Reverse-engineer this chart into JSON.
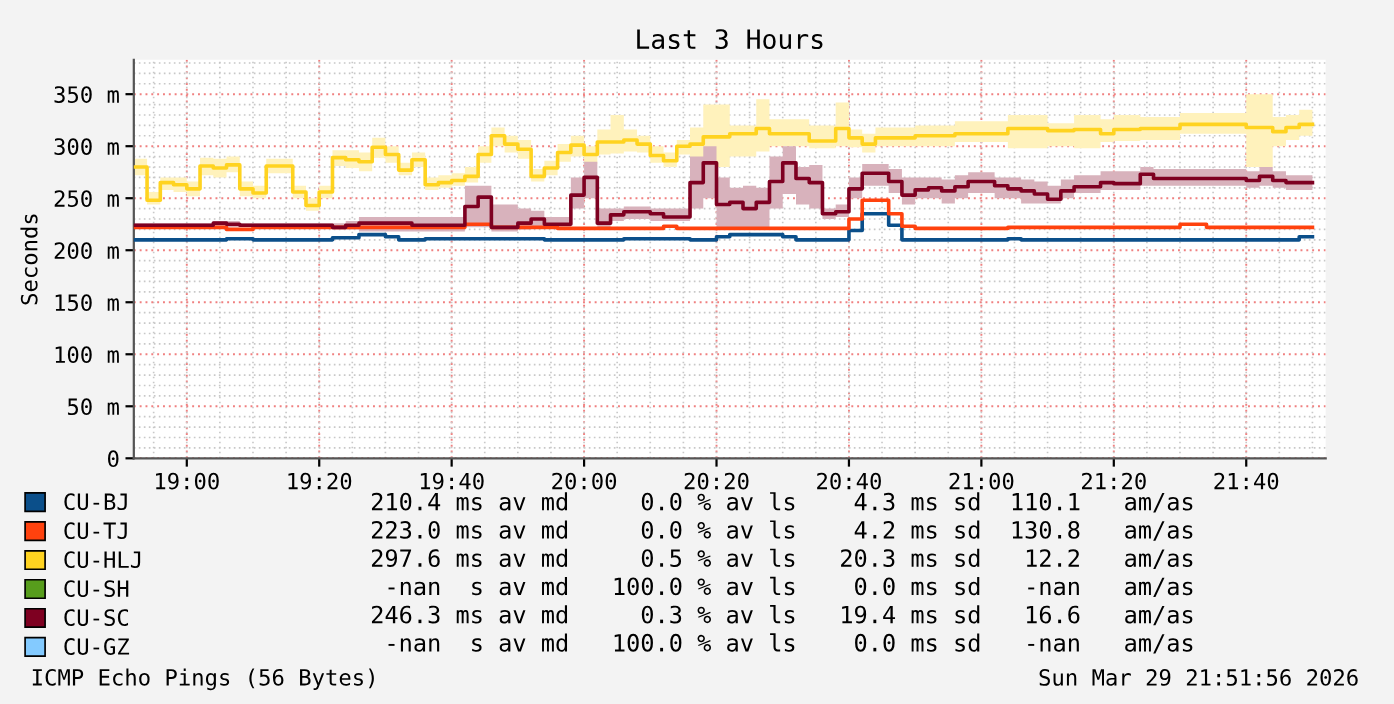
{
  "chart_data": {
    "type": "step",
    "title": "Last 3 Hours",
    "ylabel": "Seconds",
    "xlim": [
      "2026-03-29T18:52",
      "2026-03-29T21:52"
    ],
    "xticks": [
      {
        "value": "2026-03-29T19:00",
        "label": "19:00"
      },
      {
        "value": "2026-03-29T19:20",
        "label": "19:20"
      },
      {
        "value": "2026-03-29T19:40",
        "label": "19:40"
      },
      {
        "value": "2026-03-29T20:00",
        "label": "20:00"
      },
      {
        "value": "2026-03-29T20:20",
        "label": "20:20"
      },
      {
        "value": "2026-03-29T20:40",
        "label": "20:40"
      },
      {
        "value": "2026-03-29T21:00",
        "label": "21:00"
      },
      {
        "value": "2026-03-29T21:20",
        "label": "21:20"
      },
      {
        "value": "2026-03-29T21:40",
        "label": "21:40"
      }
    ],
    "ylim": [
      0,
      383
    ],
    "yticks": [
      0,
      {
        "value": 50,
        "label": "50 m"
      },
      {
        "value": 100,
        "label": "100 m"
      },
      {
        "value": 150,
        "label": "150 m"
      },
      {
        "value": 200,
        "label": "200 m"
      },
      {
        "value": 250,
        "label": "250 m"
      },
      {
        "value": 300,
        "label": "300 m"
      },
      {
        "value": 350,
        "label": "350 m"
      }
    ],
    "grid": true,
    "legend": "bottom",
    "line_style": "solid",
    "marker": "none",
    "series": [
      {
        "name": "CU-BJ",
        "color": "#0b4f8a",
        "x": [
          "2026-03-29T18:52",
          "2026-03-29T19:06",
          "2026-03-29T19:10",
          "2026-03-29T19:22",
          "2026-03-29T19:26",
          "2026-03-29T19:30",
          "2026-03-29T19:32",
          "2026-03-29T19:36",
          "2026-03-29T19:54",
          "2026-03-29T20:06",
          "2026-03-29T20:16",
          "2026-03-29T20:20",
          "2026-03-29T20:22",
          "2026-03-29T20:30",
          "2026-03-29T20:32",
          "2026-03-29T20:40",
          "2026-03-29T20:42",
          "2026-03-29T20:46",
          "2026-03-29T20:48",
          "2026-03-29T21:04",
          "2026-03-29T21:06",
          "2026-03-29T21:48",
          "2026-03-29T21:50"
        ],
        "values": [
          210,
          211,
          210,
          212,
          215,
          213,
          210,
          211,
          210,
          211,
          210,
          213,
          215,
          213,
          210,
          219,
          235,
          224,
          210,
          211,
          210,
          213,
          213
        ]
      },
      {
        "name": "CU-TJ",
        "color": "#ff420e",
        "x": [
          "2026-03-29T18:52",
          "2026-03-29T19:06",
          "2026-03-29T19:10",
          "2026-03-29T19:42",
          "2026-03-29T19:46",
          "2026-03-29T19:56",
          "2026-03-29T20:12",
          "2026-03-29T20:14",
          "2026-03-29T20:40",
          "2026-03-29T20:42",
          "2026-03-29T20:46",
          "2026-03-29T20:48",
          "2026-03-29T20:50",
          "2026-03-29T21:04",
          "2026-03-29T21:30",
          "2026-03-29T21:34",
          "2026-03-29T21:50"
        ],
        "values": [
          222,
          220,
          222,
          225,
          222,
          221,
          223,
          221,
          230,
          248,
          235,
          223,
          221,
          222,
          225,
          222,
          222
        ]
      },
      {
        "name": "CU-HLJ",
        "color": "#ffd320",
        "x": [
          "2026-03-29T18:52",
          "2026-03-29T18:54",
          "2026-03-29T18:56",
          "2026-03-29T18:58",
          "2026-03-29T19:00",
          "2026-03-29T19:02",
          "2026-03-29T19:04",
          "2026-03-29T19:06",
          "2026-03-29T19:08",
          "2026-03-29T19:10",
          "2026-03-29T19:12",
          "2026-03-29T19:16",
          "2026-03-29T19:18",
          "2026-03-29T19:20",
          "2026-03-29T19:22",
          "2026-03-29T19:24",
          "2026-03-29T19:26",
          "2026-03-29T19:28",
          "2026-03-29T19:30",
          "2026-03-29T19:32",
          "2026-03-29T19:34",
          "2026-03-29T19:36",
          "2026-03-29T19:38",
          "2026-03-29T19:40",
          "2026-03-29T19:42",
          "2026-03-29T19:44",
          "2026-03-29T19:46",
          "2026-03-29T19:48",
          "2026-03-29T19:50",
          "2026-03-29T19:52",
          "2026-03-29T19:54",
          "2026-03-29T19:56",
          "2026-03-29T19:58",
          "2026-03-29T20:00",
          "2026-03-29T20:02",
          "2026-03-29T20:04",
          "2026-03-29T20:06",
          "2026-03-29T20:08",
          "2026-03-29T20:10",
          "2026-03-29T20:12",
          "2026-03-29T20:14",
          "2026-03-29T20:16",
          "2026-03-29T20:18",
          "2026-03-29T20:22",
          "2026-03-29T20:26",
          "2026-03-29T20:28",
          "2026-03-29T20:34",
          "2026-03-29T20:38",
          "2026-03-29T20:40",
          "2026-03-29T20:42",
          "2026-03-29T20:44",
          "2026-03-29T20:50",
          "2026-03-29T20:56",
          "2026-03-29T21:04",
          "2026-03-29T21:10",
          "2026-03-29T21:14",
          "2026-03-29T21:18",
          "2026-03-29T21:20",
          "2026-03-29T21:24",
          "2026-03-29T21:30",
          "2026-03-29T21:40",
          "2026-03-29T21:44",
          "2026-03-29T21:46",
          "2026-03-29T21:48",
          "2026-03-29T21:50"
        ],
        "values": [
          280,
          248,
          265,
          263,
          259,
          281,
          279,
          282,
          259,
          255,
          281,
          256,
          243,
          256,
          289,
          287,
          285,
          299,
          292,
          277,
          287,
          263,
          265,
          267,
          271,
          292,
          310,
          302,
          297,
          271,
          279,
          294,
          301,
          292,
          304,
          304,
          306,
          302,
          291,
          286,
          300,
          302,
          309,
          312,
          317,
          312,
          305,
          317,
          308,
          302,
          308,
          310,
          312,
          317,
          315,
          316,
          312,
          316,
          317,
          321,
          318,
          314,
          318,
          321,
          321
        ],
        "lower": [
          272,
          244,
          258,
          256,
          252,
          272,
          270,
          275,
          252,
          250,
          274,
          250,
          238,
          250,
          281,
          279,
          276,
          289,
          284,
          272,
          280,
          258,
          260,
          262,
          265,
          284,
          300,
          294,
          288,
          266,
          272,
          285,
          290,
          283,
          292,
          293,
          295,
          294,
          284,
          280,
          292,
          275,
          280,
          290,
          295,
          300,
          298,
          300,
          299,
          294,
          300,
          300,
          304,
          298,
          300,
          298,
          304,
          305,
          306,
          312,
          280,
          300,
          306,
          310,
          310
        ],
        "upper": [
          288,
          256,
          270,
          270,
          266,
          289,
          288,
          290,
          266,
          262,
          288,
          262,
          250,
          262,
          296,
          296,
          294,
          308,
          300,
          284,
          294,
          270,
          272,
          274,
          280,
          300,
          318,
          310,
          306,
          278,
          286,
          302,
          310,
          300,
          316,
          330,
          316,
          310,
          300,
          294,
          306,
          318,
          340,
          320,
          345,
          326,
          320,
          342,
          316,
          312,
          318,
          320,
          324,
          330,
          322,
          330,
          326,
          330,
          328,
          332,
          350,
          328,
          330,
          335,
          335
        ]
      },
      {
        "name": "CU-SH",
        "color": "#579d1c"
      },
      {
        "name": "CU-SC",
        "color": "#7e0021",
        "x": [
          "2026-03-29T18:52",
          "2026-03-29T19:04",
          "2026-03-29T19:06",
          "2026-03-29T19:08",
          "2026-03-29T19:22",
          "2026-03-29T19:24",
          "2026-03-29T19:26",
          "2026-03-29T19:34",
          "2026-03-29T19:42",
          "2026-03-29T19:44",
          "2026-03-29T19:46",
          "2026-03-29T19:50",
          "2026-03-29T19:52",
          "2026-03-29T19:54",
          "2026-03-29T19:58",
          "2026-03-29T20:00",
          "2026-03-29T20:02",
          "2026-03-29T20:04",
          "2026-03-29T20:06",
          "2026-03-29T20:10",
          "2026-03-29T20:12",
          "2026-03-29T20:16",
          "2026-03-29T20:18",
          "2026-03-29T20:20",
          "2026-03-29T20:22",
          "2026-03-29T20:24",
          "2026-03-29T20:26",
          "2026-03-29T20:28",
          "2026-03-29T20:30",
          "2026-03-29T20:32",
          "2026-03-29T20:34",
          "2026-03-29T20:36",
          "2026-03-29T20:38",
          "2026-03-29T20:40",
          "2026-03-29T20:42",
          "2026-03-29T20:46",
          "2026-03-29T20:48",
          "2026-03-29T20:50",
          "2026-03-29T20:52",
          "2026-03-29T20:54",
          "2026-03-29T20:56",
          "2026-03-29T20:58",
          "2026-03-29T21:02",
          "2026-03-29T21:04",
          "2026-03-29T21:06",
          "2026-03-29T21:08",
          "2026-03-29T21:10",
          "2026-03-29T21:12",
          "2026-03-29T21:14",
          "2026-03-29T21:18",
          "2026-03-29T21:20",
          "2026-03-29T21:24",
          "2026-03-29T21:26",
          "2026-03-29T21:40",
          "2026-03-29T21:42",
          "2026-03-29T21:44",
          "2026-03-29T21:46",
          "2026-03-29T21:50"
        ],
        "values": [
          224,
          226,
          225,
          224,
          222,
          224,
          226,
          224,
          242,
          251,
          222,
          226,
          230,
          225,
          253,
          270,
          226,
          234,
          237,
          235,
          232,
          265,
          284,
          244,
          246,
          240,
          246,
          266,
          284,
          269,
          265,
          235,
          237,
          259,
          274,
          266,
          253,
          258,
          260,
          257,
          261,
          266,
          262,
          259,
          257,
          254,
          249,
          257,
          261,
          265,
          264,
          273,
          269,
          267,
          271,
          267,
          265,
          265
        ],
        "lower": [
          222,
          222,
          222,
          222,
          220,
          220,
          218,
          218,
          222,
          222,
          218,
          220,
          222,
          222,
          240,
          250,
          222,
          228,
          230,
          228,
          228,
          240,
          250,
          220,
          222,
          222,
          222,
          240,
          254,
          244,
          240,
          230,
          232,
          250,
          262,
          255,
          244,
          250,
          250,
          245,
          250,
          255,
          250,
          250,
          245,
          245,
          245,
          250,
          255,
          258,
          258,
          262,
          262,
          260,
          262,
          260,
          258,
          258
        ],
        "upper": [
          226,
          228,
          228,
          226,
          226,
          228,
          232,
          232,
          262,
          262,
          244,
          240,
          238,
          232,
          270,
          285,
          240,
          240,
          242,
          240,
          240,
          290,
          300,
          270,
          260,
          262,
          260,
          290,
          300,
          280,
          282,
          240,
          244,
          270,
          283,
          278,
          270,
          270,
          270,
          268,
          272,
          275,
          270,
          270,
          268,
          266,
          262,
          268,
          272,
          276,
          276,
          280,
          278,
          276,
          280,
          276,
          272,
          272
        ]
      },
      {
        "name": "CU-GZ",
        "color": "#83caff"
      }
    ],
    "annotations": [
      "210.4 ms av md     0.0 % av ls    4.3 ms sd  110.1   am/as",
      "223.0 ms av md     0.0 % av ls    4.2 ms sd  130.8   am/as",
      "297.6 ms av md     0.5 % av ls   20.3 ms sd   12.2   am/as",
      "-nan  s av md   100.0 % av ls    0.0 ms sd   -nan   am/as",
      "246.3 ms av md     0.3 % av ls   19.4 ms sd   16.6   am/as",
      "-nan  s av md   100.0 % av ls    0.0 ms sd   -nan   am/as",
      "ICMP Echo Pings (56 Bytes)",
      "Sun Mar 29 21:51:56 2026"
    ]
  }
}
